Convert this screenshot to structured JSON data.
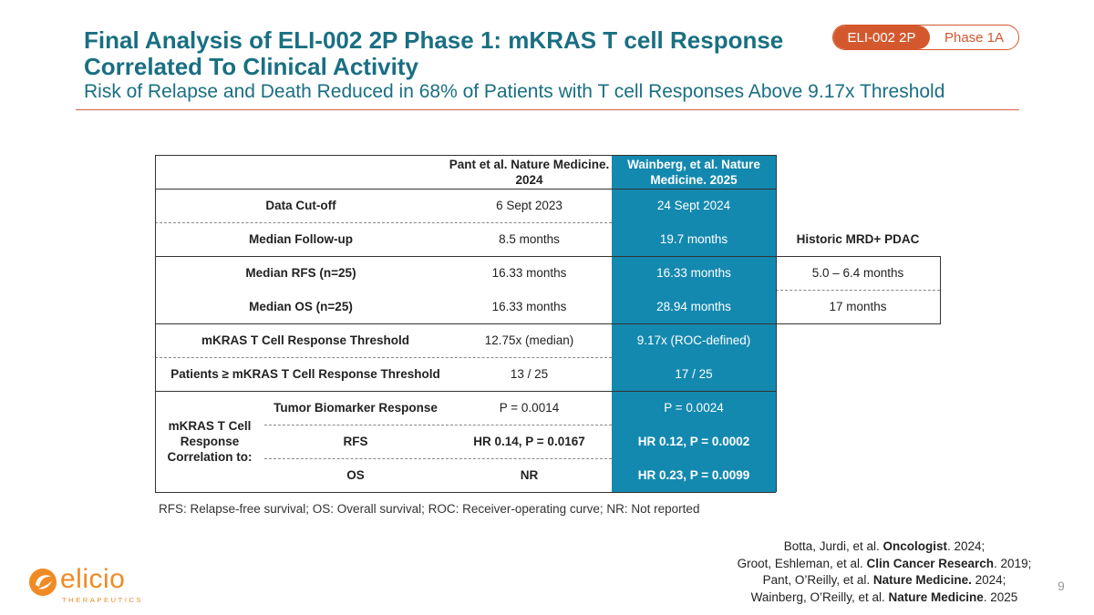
{
  "header": {
    "title": "Final Analysis of ELI-002 2P Phase 1: mKRAS T cell Response Correlated To Clinical Activity",
    "subtitle": "Risk of Relapse and Death Reduced in 68% of Patients with T cell Responses Above 9.17x Threshold",
    "badge_left": "ELI-002 2P",
    "badge_right": "Phase 1A"
  },
  "table": {
    "col_pant": "Pant et al. Nature Medicine. 2024",
    "col_wainberg": "Wainberg, et al. Nature Medicine. 2025",
    "col_historic": "Historic MRD+ PDAC",
    "rows": {
      "cutoff": {
        "label": "Data Cut-off",
        "pant": "6 Sept 2023",
        "wainberg": "24 Sept 2024"
      },
      "followup": {
        "label": "Median Follow-up",
        "pant": "8.5 months",
        "wainberg": "19.7 months"
      },
      "rfs": {
        "label": "Median RFS (n=25)",
        "pant": "16.33 months",
        "wainberg": "16.33 months",
        "historic": "5.0 – 6.4 months"
      },
      "os": {
        "label": "Median OS (n=25)",
        "pant": "16.33 months",
        "wainberg": "28.94 months",
        "historic": "17 months"
      },
      "threshold": {
        "label": "mKRAS T Cell Response Threshold",
        "pant": "12.75x (median)",
        "wainberg": "9.17x (ROC-defined)"
      },
      "patients": {
        "label": "Patients ≥ mKRAS T Cell Response Threshold",
        "pant": "13 / 25",
        "wainberg": "17 / 25"
      }
    },
    "correlation": {
      "group_label": "mKRAS T Cell Response Correlation to:",
      "items": [
        {
          "label": "Tumor Biomarker Response",
          "pant": "P = 0.0014",
          "wainberg": "P = 0.0024"
        },
        {
          "label": "RFS",
          "pant": "HR 0.14, P = 0.0167",
          "wainberg": "HR 0.12, P = 0.0002"
        },
        {
          "label": "OS",
          "pant": "NR",
          "wainberg": "HR 0.23, P = 0.0099"
        }
      ]
    }
  },
  "footnote": "RFS: Relapse-free survival; OS: Overall survival; ROC: Receiver-operating curve; NR: Not reported",
  "references": [
    {
      "authors": "Botta, Jurdi, et al. ",
      "journal": "Oncologist",
      "year": ". 2024;"
    },
    {
      "authors": "Groot, Eshleman, et al. ",
      "journal": "Clin Cancer Research",
      "year": ". 2019;"
    },
    {
      "authors": "Pant, O’Reilly, et al. ",
      "journal": "Nature Medicine.",
      "year": " 2024;"
    },
    {
      "authors": "Wainberg, O’Reilly, et al. ",
      "journal": "Nature Medicine",
      "year": ". 2025"
    }
  ],
  "page_number": "9",
  "logo": {
    "word": "elicio",
    "tagline": "THERAPEUTICS"
  },
  "colors": {
    "brand_teal": "#1a6f82",
    "accent_orange": "#d4582e",
    "highlight_blue": "#1489b0",
    "logo_orange": "#f08a24"
  }
}
